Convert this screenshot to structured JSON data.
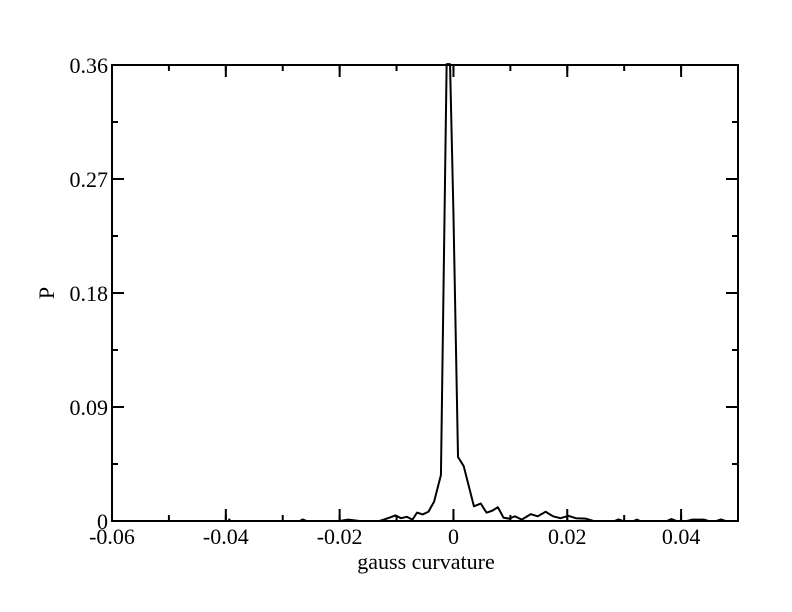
{
  "chart_data": {
    "type": "line",
    "title": "",
    "xlabel": "gauss curvature",
    "ylabel": "P",
    "xlim": [
      -0.06,
      0.05
    ],
    "ylim": [
      0,
      0.36
    ],
    "grid": false,
    "legend": "none",
    "x_ticks": [
      -0.06,
      -0.04,
      -0.02,
      0,
      0.02,
      0.04
    ],
    "x_tick_labels": [
      "-0.06",
      "-0.04",
      "-0.02",
      "0",
      "0.02",
      "0.04"
    ],
    "x_minor_step": 0.01,
    "y_ticks": [
      0,
      0.09,
      0.18,
      0.27,
      0.36
    ],
    "y_tick_labels": [
      "0",
      "0.09",
      "0.18",
      "0.27",
      "0.36"
    ],
    "y_minor_step": 0.045,
    "series": [
      {
        "color": "#000000",
        "points": [
          [
            -0.0395,
            0.0
          ],
          [
            -0.0394,
            0.0012
          ],
          [
            -0.0392,
            0.0
          ],
          [
            -0.027,
            0.0
          ],
          [
            -0.0265,
            0.0012
          ],
          [
            -0.0258,
            0.0
          ],
          [
            -0.02,
            0.0
          ],
          [
            -0.0185,
            0.0011
          ],
          [
            -0.0165,
            0.0
          ],
          [
            -0.013,
            0.0
          ],
          [
            -0.0115,
            0.0022
          ],
          [
            -0.0102,
            0.0044
          ],
          [
            -0.0092,
            0.0022
          ],
          [
            -0.0082,
            0.0033
          ],
          [
            -0.0072,
            0.0011
          ],
          [
            -0.0064,
            0.0066
          ],
          [
            -0.0054,
            0.0052
          ],
          [
            -0.0044,
            0.0073
          ],
          [
            -0.0034,
            0.0153
          ],
          [
            -0.0022,
            0.0363
          ],
          [
            -0.0012,
            0.3607
          ],
          [
            -0.0006,
            0.3607
          ],
          [
            0.0,
            0.2425
          ],
          [
            0.0008,
            0.0505
          ],
          [
            0.0018,
            0.0433
          ],
          [
            0.0036,
            0.0116
          ],
          [
            0.0048,
            0.0138
          ],
          [
            0.0058,
            0.0066
          ],
          [
            0.0068,
            0.0081
          ],
          [
            0.0078,
            0.0109
          ],
          [
            0.0088,
            0.0026
          ],
          [
            0.0098,
            0.0019
          ],
          [
            0.0108,
            0.0037
          ],
          [
            0.012,
            0.0011
          ],
          [
            0.0136,
            0.0054
          ],
          [
            0.0148,
            0.0037
          ],
          [
            0.0162,
            0.0073
          ],
          [
            0.0175,
            0.0037
          ],
          [
            0.0188,
            0.0022
          ],
          [
            0.0202,
            0.0041
          ],
          [
            0.0215,
            0.0022
          ],
          [
            0.0232,
            0.0019
          ],
          [
            0.0246,
            0.0
          ],
          [
            0.026,
            0.0
          ],
          [
            0.0283,
            0.0
          ],
          [
            0.029,
            0.0012
          ],
          [
            0.0298,
            0.0
          ],
          [
            0.0317,
            0.0
          ],
          [
            0.0322,
            0.0011
          ],
          [
            0.0328,
            0.0
          ],
          [
            0.0375,
            0.0
          ],
          [
            0.0383,
            0.0015
          ],
          [
            0.0392,
            0.0
          ],
          [
            0.041,
            0.0
          ],
          [
            0.042,
            0.0011
          ],
          [
            0.043,
            0.0011
          ],
          [
            0.044,
            0.0011
          ],
          [
            0.0448,
            0.0
          ],
          [
            0.0462,
            0.0
          ],
          [
            0.047,
            0.0012
          ],
          [
            0.0478,
            0.0
          ]
        ]
      }
    ]
  }
}
